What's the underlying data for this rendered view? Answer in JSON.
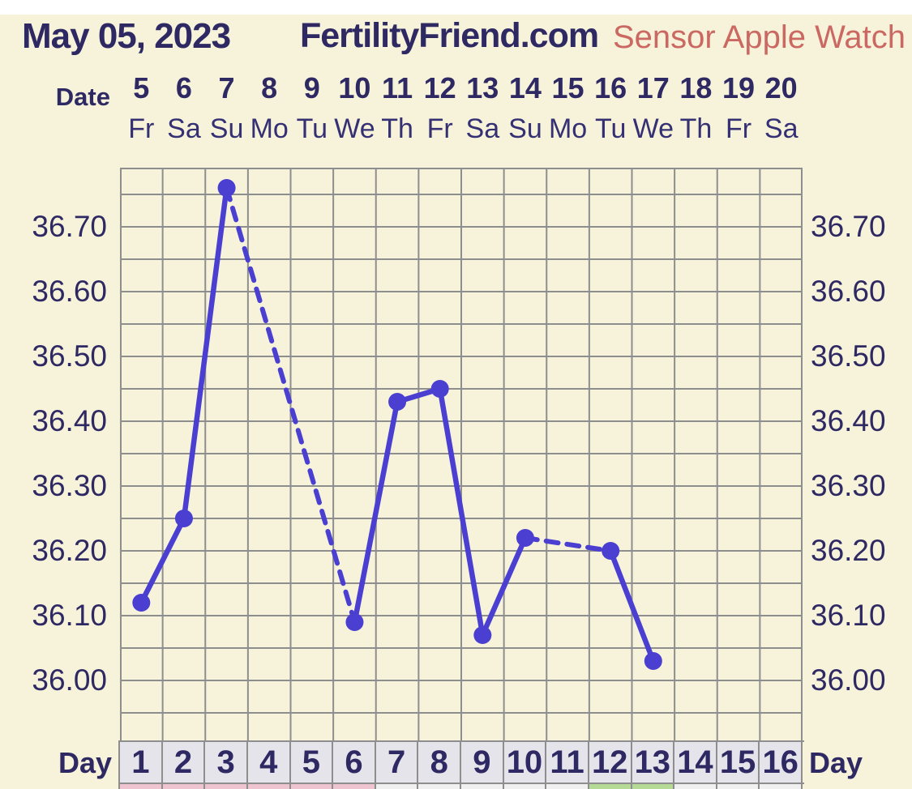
{
  "header": {
    "date": "May 05, 2023",
    "site": "FertilityFriend.com",
    "sensor_label": "Sensor Apple Watch"
  },
  "date_row": {
    "label": "Date",
    "dates": [
      "5",
      "6",
      "7",
      "8",
      "9",
      "10",
      "11",
      "12",
      "13",
      "14",
      "15",
      "16",
      "17",
      "18",
      "19",
      "20"
    ]
  },
  "weekday_row": [
    "Fr",
    "Sa",
    "Su",
    "Mo",
    "Tu",
    "We",
    "Th",
    "Fr",
    "Sa",
    "Su",
    "Mo",
    "Tu",
    "We",
    "Th",
    "Fr",
    "Sa"
  ],
  "day_row": {
    "label_left": "Day",
    "label_right": "Day",
    "days": [
      "1",
      "2",
      "3",
      "4",
      "5",
      "6",
      "7",
      "8",
      "9",
      "10",
      "11",
      "12",
      "13",
      "14",
      "15",
      "16"
    ]
  },
  "y_axis": {
    "left_ticks": [
      "36.70",
      "36.60",
      "36.50",
      "36.40",
      "36.30",
      "36.20",
      "36.10",
      "36.00"
    ],
    "right_ticks": [
      "36.70",
      "36.60",
      "36.50",
      "36.40",
      "36.30",
      "36.20",
      "36.10",
      "36.00"
    ]
  },
  "chart_data": {
    "type": "line",
    "x_categories_cycle_day": [
      1,
      2,
      3,
      4,
      5,
      6,
      7,
      8,
      9,
      10,
      11,
      12,
      13,
      14,
      15,
      16
    ],
    "x_dates_may_2023": [
      5,
      6,
      7,
      8,
      9,
      10,
      11,
      12,
      13,
      14,
      15,
      16,
      17,
      18,
      19,
      20
    ],
    "x_weekdays": [
      "Fr",
      "Sa",
      "Su",
      "Mo",
      "Tu",
      "We",
      "Th",
      "Fr",
      "Sa",
      "Su",
      "Mo",
      "Tu",
      "We",
      "Th",
      "Fr",
      "Sa"
    ],
    "series": [
      {
        "name": "basal-body-temperature-celsius",
        "points": [
          {
            "day": 1,
            "temp": 36.12
          },
          {
            "day": 2,
            "temp": 36.25
          },
          {
            "day": 3,
            "temp": 36.76
          },
          {
            "day": 6,
            "temp": 36.09
          },
          {
            "day": 7,
            "temp": 36.43
          },
          {
            "day": 8,
            "temp": 36.45
          },
          {
            "day": 9,
            "temp": 36.07
          },
          {
            "day": 10,
            "temp": 36.22
          },
          {
            "day": 12,
            "temp": 36.2
          },
          {
            "day": 13,
            "temp": 36.03
          }
        ],
        "missing_days": [
          4,
          5,
          11,
          14,
          15,
          16
        ],
        "dashed_segments": [
          [
            3,
            6
          ],
          [
            10,
            12
          ]
        ]
      }
    ],
    "ylim": [
      35.95,
      36.8
    ],
    "yticks_labeled": [
      36.7,
      36.6,
      36.5,
      36.4,
      36.3,
      36.2,
      36.1,
      36.0
    ],
    "minor_grid_step": 0.05,
    "grid": true,
    "legend": "none"
  },
  "phase_strip": {
    "by_day": [
      "pink",
      "pink",
      "pink",
      "pink",
      "pink",
      "pink",
      "none",
      "none",
      "none",
      "none",
      "none",
      "green",
      "green",
      "none",
      "none",
      "none"
    ]
  },
  "palette": {
    "background": "#f6f3da",
    "top_bar": "#ffffff",
    "text_navy": "#2e2963",
    "sensor_red": "#cb6862",
    "line_indigo": "#4a3fd0",
    "grid_gray": "#8e8e8e",
    "day_cell_bg": "#e4e4ea",
    "strip_pink": "#efc4d1",
    "strip_green": "#b5da96",
    "strip_neutral": "#f0f0f0"
  }
}
